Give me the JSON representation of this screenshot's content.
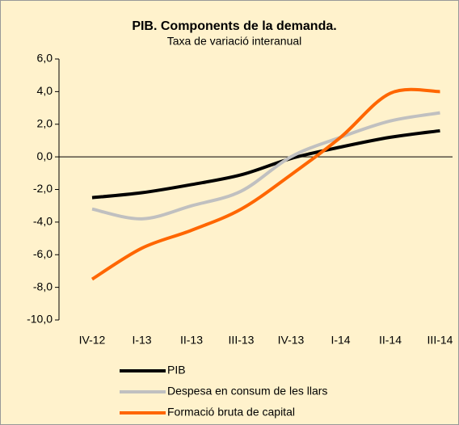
{
  "chart_data": {
    "type": "line",
    "title": "PIB. Components de la demanda.",
    "subtitle": "Taxa de variació interanual",
    "categories": [
      "IV-12",
      "I-13",
      "II-13",
      "III-13",
      "IV-13",
      "I-14",
      "II-14",
      "III-14"
    ],
    "series": [
      {
        "name": "PIB",
        "color": "#000000",
        "values": [
          -2.5,
          -2.2,
          -1.7,
          -1.1,
          -0.1,
          0.6,
          1.2,
          1.6
        ]
      },
      {
        "name": "Despesa en consum de les llars",
        "color": "#c0c0c0",
        "values": [
          -3.2,
          -3.8,
          -3.0,
          -2.1,
          0.0,
          1.2,
          2.2,
          2.7
        ]
      },
      {
        "name": "Formació bruta de capital",
        "color": "#ff6600",
        "values": [
          -7.5,
          -5.6,
          -4.5,
          -3.2,
          -1.1,
          1.2,
          3.9,
          4.0
        ]
      }
    ],
    "ylim": [
      -10,
      6
    ],
    "yticks": [
      {
        "value": -10,
        "label": "-10,0"
      },
      {
        "value": -8,
        "label": "-8,0"
      },
      {
        "value": -6,
        "label": "-6,0"
      },
      {
        "value": -4,
        "label": "-4,0"
      },
      {
        "value": -2,
        "label": "-2,0"
      },
      {
        "value": 0,
        "label": "0,0"
      },
      {
        "value": 2,
        "label": "2,0"
      },
      {
        "value": 4,
        "label": "4,0"
      },
      {
        "value": 6,
        "label": "6,0"
      }
    ]
  }
}
